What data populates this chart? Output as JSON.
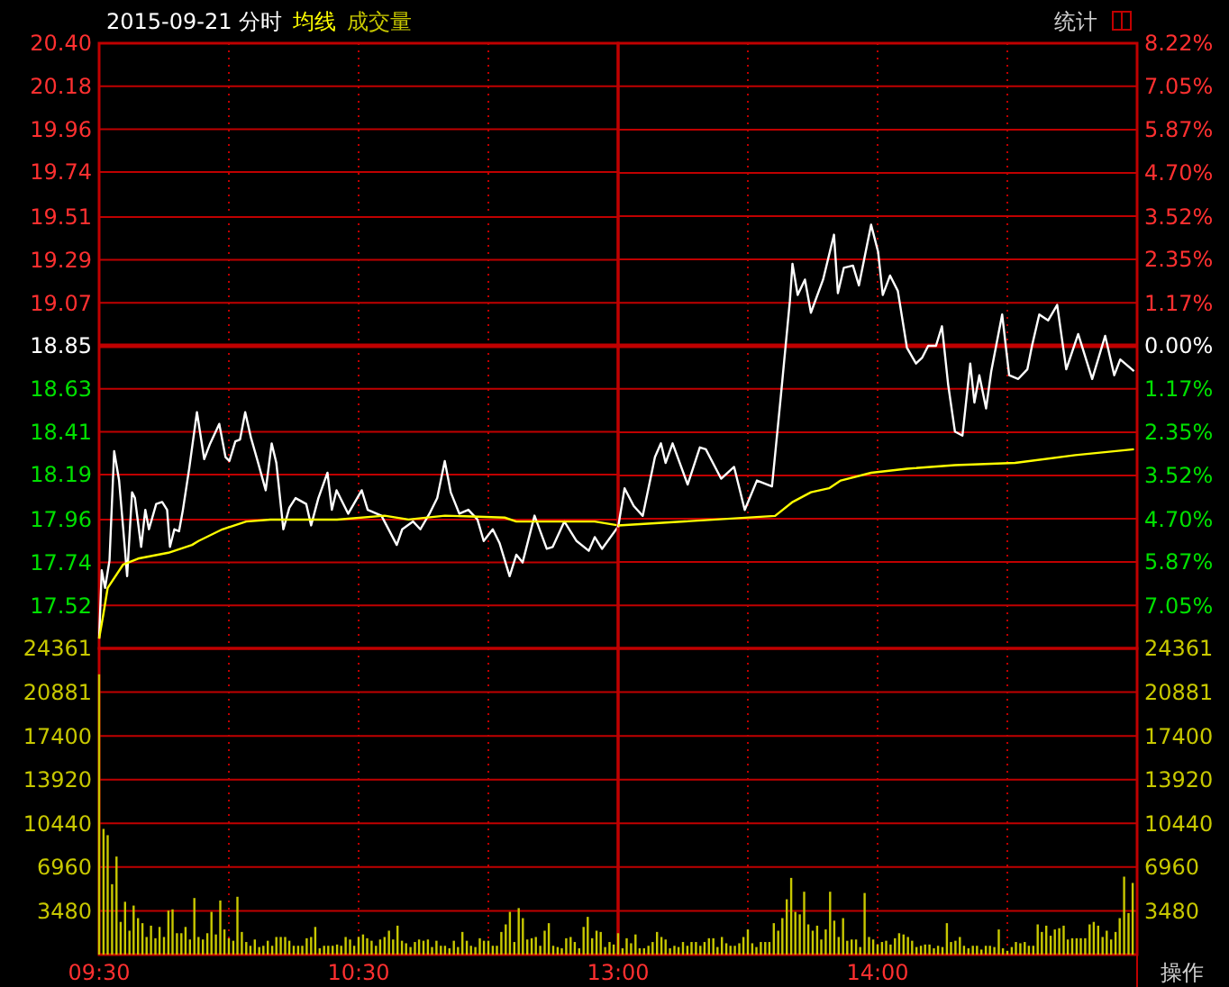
{
  "chart_data": [
    {
      "type": "line",
      "title": "2015-09-21 分时",
      "grid": true,
      "tick_labels": "y",
      "xlim": [
        9.5,
        11.5
      ],
      "xticks": [
        {
          "value": 9.5,
          "label": null
        },
        {
          "value": 10,
          "label": null
        },
        {
          "value": 10.5,
          "label": null
        },
        {
          "value": 11,
          "label": null
        },
        {
          "value": 11.5,
          "label": null
        }
      ],
      "ylim": [
        17.3,
        20.4
      ],
      "yticks": [
        {
          "value": 17.52,
          "label": "17.52"
        },
        {
          "value": 17.74,
          "label": "17.74"
        },
        {
          "value": 17.96,
          "label": "17.96"
        },
        {
          "value": 18.19,
          "label": "18.19"
        },
        {
          "value": 18.41,
          "label": "18.41"
        },
        {
          "value": 18.63,
          "label": "18.63"
        },
        {
          "value": 18.85,
          "label": "18.85"
        },
        {
          "value": 19.07,
          "label": "19.07"
        },
        {
          "value": 19.29,
          "label": "19.29"
        },
        {
          "value": 19.51,
          "label": "19.51"
        },
        {
          "value": 19.74,
          "label": "19.74"
        },
        {
          "value": 19.96,
          "label": "19.96"
        },
        {
          "value": 20.18,
          "label": "20.18"
        },
        {
          "value": 20.4,
          "label": "20.40"
        }
      ],
      "ref_lines": [
        {
          "axis": "y",
          "value": 18.85,
          "color": "#c00000"
        }
      ],
      "series": [
        {
          "color": "#ffffff",
          "x": [
            9.5,
            9.51,
            9.523,
            9.54,
            9.558,
            9.577,
            9.593,
            9.608,
            9.627,
            9.638,
            9.662,
            9.678,
            9.692,
            9.72,
            9.743,
            9.762,
            9.773,
            9.79,
            9.808,
            9.823,
            9.847,
            9.877,
            9.905,
            9.928,
            9.963,
            9.987,
            10.002,
            10.025,
            10.043,
            10.063,
            10.085,
            10.113,
            10.142,
            10.165,
            10.183,
            10.21,
            10.233,
            10.257,
            10.298,
            10.317,
            10.345,
            10.38,
            10.397,
            10.415,
            10.46,
            10.512,
            10.535,
            10.588,
            10.647,
            10.668,
            10.71,
            10.738,
            10.773,
            10.803,
            10.832,
            10.855,
            10.888,
            10.923,
            10.958,
            10.982,
            11.017,
            11.043,
            11.082,
            11.108,
            11.132,
            11.178,
            11.225,
            11.248,
            11.293,
            11.34,
            11.387,
            11.41,
            11.438,
            11.498
          ],
          "values": [
            17.35,
            17.7,
            17.61,
            17.75,
            18.31,
            18.16,
            17.91,
            17.67,
            18.1,
            18.07,
            17.82,
            18.01,
            17.91,
            18.04,
            18.05,
            18.01,
            17.82,
            17.91,
            17.9,
            18.01,
            18.22,
            18.51,
            18.27,
            18.35,
            18.45,
            18.28,
            18.26,
            18.36,
            18.37,
            18.51,
            18.38,
            18.25,
            18.11,
            18.35,
            18.25,
            17.91,
            18.02,
            18.07,
            18.04,
            17.93,
            18.07,
            18.2,
            18.01,
            18.11,
            17.99,
            18.11,
            18.01,
            17.98,
            17.83,
            17.91,
            17.95,
            17.91,
            17.99,
            18.07,
            18.26,
            18.1,
            17.99,
            18.01,
            17.96,
            17.85,
            17.91,
            17.84,
            17.67,
            17.78,
            17.74,
            17.98,
            17.81,
            17.82,
            17.95,
            17.85,
            17.8,
            17.87,
            17.81,
            17.92
          ]
        },
        {
          "name": "均线",
          "color": "#ffff00",
          "x": [
            9.5,
            9.517,
            9.533,
            9.593,
            9.65,
            9.767,
            9.858,
            9.883,
            9.975,
            10.067,
            10.16,
            10.417,
            10.6,
            10.692,
            10.833,
            11.063,
            11.108,
            11.248,
            11.41,
            11.5
          ],
          "values": [
            17.35,
            17.48,
            17.61,
            17.73,
            17.76,
            17.79,
            17.83,
            17.85,
            17.91,
            17.95,
            17.96,
            17.96,
            17.98,
            17.96,
            17.98,
            17.97,
            17.95,
            17.95,
            17.95,
            17.93
          ]
        }
      ]
    },
    {
      "type": "line",
      "grid": true,
      "tick_labels": "y",
      "annotations": [
        "统计"
      ],
      "xlim": [
        13,
        15
      ],
      "xticks": [
        {
          "value": 13,
          "label": null
        },
        {
          "value": 13.5,
          "label": null
        },
        {
          "value": 14,
          "label": null
        },
        {
          "value": 14.5,
          "label": null
        },
        {
          "value": 15,
          "label": null
        }
      ],
      "ylim": [
        -8.22,
        8.22
      ],
      "yticks": [
        {
          "value": -7.05,
          "label": "7.05%"
        },
        {
          "value": -5.87,
          "label": "5.87%"
        },
        {
          "value": -4.7,
          "label": "4.70%"
        },
        {
          "value": -3.52,
          "label": "3.52%"
        },
        {
          "value": -2.35,
          "label": "2.35%"
        },
        {
          "value": -1.17,
          "label": "1.17%"
        },
        {
          "value": 0,
          "label": "0.00%"
        },
        {
          "value": 1.17,
          "label": "1.17%"
        },
        {
          "value": 2.35,
          "label": "2.35%"
        },
        {
          "value": 3.52,
          "label": "3.52%"
        },
        {
          "value": 4.7,
          "label": "4.70%"
        },
        {
          "value": 5.87,
          "label": "5.87%"
        },
        {
          "value": 7.05,
          "label": "7.05%"
        },
        {
          "value": 8.22,
          "label": "8.22%"
        }
      ],
      "ref_lines": [
        {
          "axis": "y",
          "value": 0,
          "color": "#c00000"
        }
      ],
      "series": [
        {
          "color": "#ffffff",
          "x": [
            13,
            13.025,
            13.06,
            13.095,
            13.142,
            13.165,
            13.183,
            13.21,
            13.268,
            13.315,
            13.338,
            13.397,
            13.447,
            13.488,
            13.535,
            13.593,
            13.627,
            13.662,
            13.672,
            13.692,
            13.72,
            13.743,
            13.79,
            13.832,
            13.847,
            13.87,
            13.905,
            13.928,
            13.975,
            14.002,
            14.02,
            14.048,
            14.078,
            14.113,
            14.148,
            14.172,
            14.195,
            14.225,
            14.248,
            14.272,
            14.298,
            14.327,
            14.357,
            14.373,
            14.392,
            14.418,
            14.438,
            14.48,
            14.507,
            14.542,
            14.577,
            14.595,
            14.623,
            14.657,
            14.692,
            14.727,
            14.773,
            14.827,
            14.877,
            14.912,
            14.935,
            14.988
          ],
          "values": [
            -4.93,
            -3.87,
            -4.35,
            -4.62,
            -3.02,
            -2.65,
            -3.18,
            -2.65,
            -3.77,
            -2.76,
            -2.81,
            -3.61,
            -3.29,
            -4.46,
            -3.66,
            -3.82,
            -1.38,
            1.22,
            2.23,
            1.38,
            1.8,
            0.9,
            1.8,
            3.02,
            1.43,
            2.12,
            2.18,
            1.64,
            3.29,
            2.55,
            1.38,
            1.91,
            1.49,
            -0.05,
            -0.48,
            -0.32,
            0,
            0,
            0.53,
            -1.06,
            -2.33,
            -2.44,
            -0.48,
            -1.54,
            -0.8,
            -1.7,
            -0.69,
            0.85,
            -0.8,
            -0.9,
            -0.64,
            0,
            0.85,
            0.69,
            1.11,
            -0.64,
            0.32,
            -0.9,
            0.27,
            -0.8,
            -0.37,
            -0.69
          ]
        },
        {
          "color": "#ffff00",
          "x": [
            13,
            13.605,
            13.673,
            13.743,
            13.813,
            13.858,
            13.975,
            14.113,
            14.298,
            14.53,
            14.762,
            14.988
          ],
          "values": [
            -4.88,
            -4.62,
            -4.24,
            -3.98,
            -3.87,
            -3.66,
            -3.45,
            -3.34,
            -3.24,
            -3.18,
            -2.97,
            -2.81
          ]
        }
      ]
    },
    {
      "type": "bar",
      "grid": true,
      "xlim": [
        9.5,
        11.5
      ],
      "xticks": [
        {
          "value": 9.5,
          "label": "09:30"
        },
        {
          "value": 10,
          "label": null
        },
        {
          "value": 10.5,
          "label": "10:30"
        },
        {
          "value": 11,
          "label": null
        },
        {
          "value": 11.5,
          "label": null
        }
      ],
      "ylim": [
        0,
        24361
      ],
      "yticks": [
        3480,
        6960,
        10440,
        13920,
        17400,
        20881,
        24361
      ],
      "x": [
        9.5,
        9.517,
        9.533,
        9.55,
        9.567,
        9.583,
        9.6,
        9.617,
        9.633,
        9.65,
        9.667,
        9.683,
        9.7,
        9.717,
        9.733,
        9.75,
        9.767,
        9.783,
        9.8,
        9.817,
        9.833,
        9.85,
        9.867,
        9.883,
        9.9,
        9.917,
        9.933,
        9.95,
        9.967,
        9.983,
        10,
        10.017,
        10.033,
        10.05,
        10.067,
        10.083,
        10.1,
        10.117,
        10.133,
        10.15,
        10.167,
        10.183,
        10.2,
        10.217,
        10.233,
        10.25,
        10.267,
        10.283,
        10.3,
        10.317,
        10.333,
        10.35,
        10.367,
        10.383,
        10.4,
        10.417,
        10.433,
        10.45,
        10.467,
        10.483,
        10.5,
        10.517,
        10.533,
        10.55,
        10.567,
        10.583,
        10.6,
        10.617,
        10.633,
        10.65,
        10.667,
        10.683,
        10.7,
        10.717,
        10.733,
        10.75,
        10.767,
        10.783,
        10.8,
        10.817,
        10.833,
        10.85,
        10.867,
        10.883,
        10.9,
        10.917,
        10.933,
        10.95,
        10.967,
        10.983,
        11,
        11.017,
        11.033,
        11.05,
        11.067,
        11.083,
        11.1,
        11.117,
        11.133,
        11.15,
        11.167,
        11.183,
        11.2,
        11.217,
        11.233,
        11.25,
        11.267,
        11.283,
        11.3,
        11.317,
        11.333,
        11.35,
        11.367,
        11.383,
        11.4,
        11.417,
        11.433,
        11.45,
        11.467,
        11.483
      ],
      "series": [
        {
          "name": "成交量",
          "color": "#c8c800",
          "values": [
            22300,
            10000,
            9500,
            5600,
            7800,
            2600,
            4200,
            1900,
            3900,
            2900,
            2500,
            1400,
            2300,
            1300,
            2200,
            1400,
            3500,
            3600,
            1700,
            1700,
            2200,
            1200,
            4500,
            1400,
            1200,
            1700,
            3400,
            1600,
            4300,
            2000,
            1300,
            1100,
            4600,
            1800,
            1000,
            700,
            1200,
            600,
            700,
            1100,
            700,
            1400,
            1400,
            1400,
            1100,
            700,
            700,
            700,
            1300,
            1400,
            2200,
            500,
            700,
            700,
            700,
            800,
            700,
            1400,
            1200,
            700,
            1400,
            1600,
            1300,
            1100,
            700,
            1200,
            1400,
            1900,
            1200,
            2300,
            1100,
            900,
            600,
            1000,
            1200,
            1100,
            1200,
            600,
            1100,
            700,
            700,
            500,
            1100,
            600,
            1800,
            1100,
            700,
            600,
            1300,
            1100,
            1100,
            700,
            700,
            1800,
            2400,
            3400,
            1000,
            3700,
            2900,
            1200,
            1300,
            1400,
            700,
            1900,
            2500,
            700,
            600,
            500,
            1300,
            1400,
            1000,
            500,
            2200,
            3000,
            1300,
            1900,
            1800,
            600,
            1000,
            800
          ]
        }
      ]
    },
    {
      "type": "bar",
      "grid": true,
      "annotations": [
        "操作"
      ],
      "xlim": [
        13,
        15
      ],
      "xticks": [
        {
          "value": 13,
          "label": "13:00"
        },
        {
          "value": 13.5,
          "label": null
        },
        {
          "value": 14,
          "label": "14:00"
        },
        {
          "value": 14.5,
          "label": null
        },
        {
          "value": 15,
          "label": null
        }
      ],
      "ylim": [
        0,
        24361
      ],
      "yticks": [
        3480,
        6960,
        10440,
        13920,
        17400,
        20881,
        24361
      ],
      "x": [
        13,
        13.017,
        13.033,
        13.05,
        13.067,
        13.083,
        13.1,
        13.117,
        13.133,
        13.15,
        13.167,
        13.183,
        13.2,
        13.217,
        13.233,
        13.25,
        13.267,
        13.283,
        13.3,
        13.317,
        13.333,
        13.35,
        13.367,
        13.383,
        13.4,
        13.417,
        13.433,
        13.45,
        13.467,
        13.483,
        13.5,
        13.517,
        13.533,
        13.55,
        13.567,
        13.583,
        13.6,
        13.617,
        13.633,
        13.65,
        13.667,
        13.683,
        13.7,
        13.717,
        13.733,
        13.75,
        13.767,
        13.783,
        13.8,
        13.817,
        13.833,
        13.85,
        13.867,
        13.883,
        13.9,
        13.917,
        13.933,
        13.95,
        13.967,
        13.983,
        14,
        14.017,
        14.033,
        14.05,
        14.067,
        14.083,
        14.1,
        14.117,
        14.133,
        14.15,
        14.167,
        14.183,
        14.2,
        14.217,
        14.233,
        14.25,
        14.267,
        14.283,
        14.3,
        14.317,
        14.333,
        14.35,
        14.367,
        14.383,
        14.4,
        14.417,
        14.433,
        14.45,
        14.467,
        14.483,
        14.5,
        14.517,
        14.533,
        14.55,
        14.567,
        14.583,
        14.6,
        14.617,
        14.633,
        14.65,
        14.667,
        14.683,
        14.7,
        14.717,
        14.733,
        14.75,
        14.767,
        14.783,
        14.8,
        14.817,
        14.833,
        14.85,
        14.867,
        14.883,
        14.9,
        14.917,
        14.933,
        14.95,
        14.967,
        14.983
      ],
      "series": [
        {
          "color": "#c8c800",
          "values": [
            1700,
            500,
            1300,
            900,
            1600,
            500,
            500,
            700,
            1000,
            1800,
            1400,
            1200,
            500,
            700,
            600,
            1000,
            700,
            1000,
            1000,
            700,
            1000,
            1300,
            1300,
            600,
            1400,
            900,
            700,
            700,
            900,
            1400,
            2000,
            900,
            600,
            1000,
            1000,
            1000,
            2500,
            1900,
            2900,
            4400,
            6100,
            3400,
            3200,
            5000,
            2400,
            1900,
            2300,
            1200,
            2000,
            5000,
            2700,
            1400,
            2900,
            1100,
            1200,
            1200,
            600,
            4900,
            1400,
            1200,
            800,
            1000,
            1100,
            800,
            1300,
            1700,
            1600,
            1400,
            1100,
            600,
            700,
            800,
            800,
            500,
            700,
            600,
            2500,
            1000,
            1100,
            1400,
            700,
            500,
            700,
            700,
            400,
            700,
            700,
            600,
            2000,
            500,
            300,
            600,
            1000,
            900,
            1000,
            700,
            700,
            2400,
            1800,
            2300,
            1500,
            2000,
            2100,
            2300,
            1200,
            1300,
            1300,
            1300,
            1300,
            2400,
            2600,
            2300,
            1400,
            1900,
            1200,
            1800,
            2900,
            6200,
            3300,
            5700
          ]
        }
      ]
    }
  ]
}
